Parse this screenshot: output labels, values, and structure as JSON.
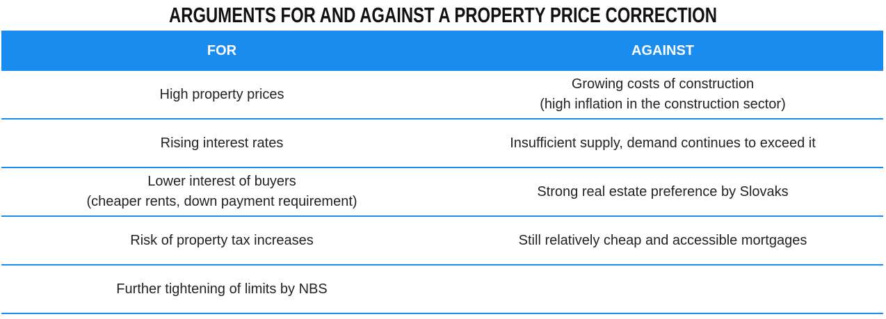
{
  "title": "ARGUMENTS FOR AND AGAINST A PROPERTY PRICE CORRECTION",
  "table": {
    "header": [
      "FOR",
      "AGAINST"
    ],
    "rows": [
      [
        [
          "High property prices"
        ],
        [
          "Growing costs of construction",
          "(high inflation in the construction sector)"
        ]
      ],
      [
        [
          "Rising interest rates"
        ],
        [
          "Insufficient supply, demand continues to exceed it"
        ]
      ],
      [
        [
          "Lower interest of buyers",
          "(cheaper rents, down payment requirement)"
        ],
        [
          "Strong real estate preference by Slovaks"
        ]
      ],
      [
        [
          "Risk of property tax increases"
        ],
        [
          "Still relatively cheap and accessible mortgages"
        ]
      ],
      [
        [
          "Further tightening of limits by NBS"
        ]
      ]
    ]
  }
}
